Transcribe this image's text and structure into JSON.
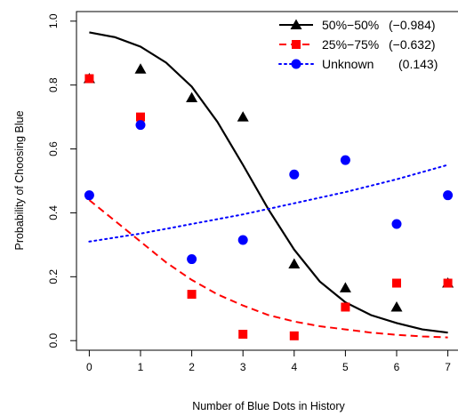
{
  "chart_data": {
    "type": "scatter",
    "xlabel": "Number of Blue Dots in History",
    "ylabel": "Probability of Choosing Blue",
    "xlim": [
      -0.25,
      7.25
    ],
    "ylim": [
      -0.03,
      1.03
    ],
    "x_ticks": [
      0,
      1,
      2,
      3,
      4,
      5,
      6,
      7
    ],
    "x_tick_labels": [
      "0",
      "1",
      "2",
      "3",
      "4",
      "5",
      "6",
      "7"
    ],
    "y_ticks": [
      0.0,
      0.2,
      0.4,
      0.6,
      0.8,
      1.0
    ],
    "y_tick_labels": [
      "0.0",
      "0.2",
      "0.4",
      "0.6",
      "0.8",
      "1.0"
    ],
    "grid": false,
    "legend_position": "top-right",
    "series": [
      {
        "name": "50%−50%",
        "coef": "(−0.984)",
        "color": "#000000",
        "marker": "triangle",
        "line_style": "solid",
        "x": [
          0,
          1,
          2,
          3,
          4,
          5,
          6,
          7
        ],
        "y": [
          0.82,
          0.85,
          0.76,
          0.7,
          0.24,
          0.165,
          0.105,
          0.18
        ],
        "fit": {
          "x": [
            0,
            0.5,
            1,
            1.5,
            2,
            2.5,
            3,
            3.5,
            4,
            4.5,
            5,
            5.5,
            6,
            6.5,
            7
          ],
          "y": [
            0.965,
            0.95,
            0.92,
            0.87,
            0.795,
            0.685,
            0.55,
            0.41,
            0.285,
            0.185,
            0.12,
            0.08,
            0.055,
            0.035,
            0.025
          ]
        }
      },
      {
        "name": "25%−75%",
        "coef": "(−0.632)",
        "color": "#ff0000",
        "marker": "square",
        "line_style": "dashed",
        "x": [
          0,
          1,
          2,
          3,
          4,
          5,
          6,
          7
        ],
        "y": [
          0.82,
          0.7,
          0.145,
          0.02,
          0.015,
          0.105,
          0.18,
          0.18
        ],
        "fit": {
          "x": [
            0,
            0.5,
            1,
            1.5,
            2,
            2.5,
            3,
            3.5,
            4,
            4.5,
            5,
            5.5,
            6,
            6.5,
            7
          ],
          "y": [
            0.44,
            0.375,
            0.31,
            0.245,
            0.19,
            0.145,
            0.11,
            0.08,
            0.06,
            0.045,
            0.035,
            0.025,
            0.018,
            0.013,
            0.01
          ]
        }
      },
      {
        "name": "Unknown",
        "coef": "(0.143)",
        "color": "#0000ff",
        "marker": "circle",
        "line_style": "dotted",
        "x": [
          0,
          1,
          2,
          3,
          4,
          5,
          6,
          7
        ],
        "y": [
          0.455,
          0.675,
          0.255,
          0.315,
          0.52,
          0.565,
          0.365,
          0.455
        ],
        "fit": {
          "x": [
            0,
            1,
            2,
            3,
            4,
            5,
            6,
            7
          ],
          "y": [
            0.31,
            0.335,
            0.365,
            0.395,
            0.43,
            0.465,
            0.505,
            0.55
          ]
        }
      }
    ]
  }
}
